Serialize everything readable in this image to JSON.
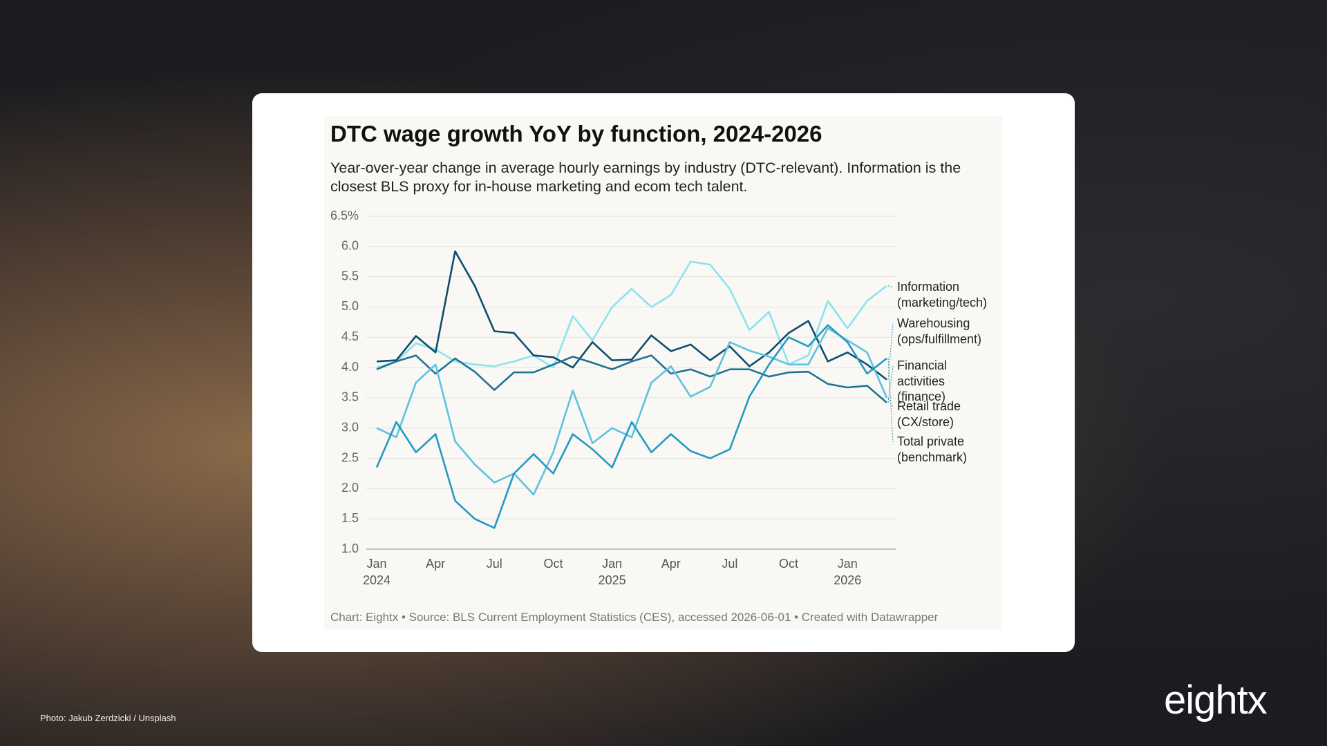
{
  "chart_data": {
    "type": "line",
    "title": "DTC wage growth YoY by function, 2024-2026",
    "subtitle": "Year-over-year change in average hourly earnings by industry (DTC-relevant). Information is the closest BLS proxy for in-house marketing and ecom tech talent.",
    "source": "Chart: Eightx • Source: BLS Current Employment Statistics (CES), accessed 2026-06-01 • Created with Datawrapper",
    "categories": [
      "Jan\n2024",
      null,
      null,
      "Apr",
      null,
      null,
      "Jul",
      null,
      null,
      "Oct",
      null,
      null,
      "Jan\n2025",
      null,
      null,
      "Apr",
      null,
      null,
      "Jul",
      null,
      null,
      "Oct",
      null,
      null,
      "Jan\n2026",
      null,
      null
    ],
    "ylim": [
      1,
      6.5
    ],
    "yticks": [
      {
        "value": 1,
        "label": "1.0"
      },
      1.5,
      {
        "value": 2,
        "label": "2.0"
      },
      2.5,
      {
        "value": 3,
        "label": "3.0"
      },
      3.5,
      {
        "value": 4,
        "label": "4.0"
      },
      4.5,
      {
        "value": 5,
        "label": "5.0"
      },
      5.5,
      {
        "value": 6,
        "label": "6.0"
      },
      {
        "value": 6.5,
        "label": "6.5%"
      }
    ],
    "grid": true,
    "series": [
      {
        "name": "Information\n(marketing/tech)",
        "color": "#8be3ef",
        "values": [
          4.0,
          4.1,
          4.4,
          4.3,
          4.1,
          4.05,
          4.02,
          4.1,
          4.2,
          4.0,
          4.85,
          4.45,
          5.0,
          5.3,
          5.0,
          5.2,
          5.75,
          5.7,
          5.3,
          4.62,
          4.92,
          4.05,
          4.2,
          5.1,
          4.65,
          5.1,
          5.35
        ]
      },
      {
        "name": "Warehousing\n(ops/fulfillment)",
        "color": "#0e4d6b",
        "values": [
          4.1,
          4.12,
          4.52,
          4.25,
          5.92,
          5.35,
          4.6,
          4.57,
          4.2,
          4.17,
          4.0,
          4.42,
          4.12,
          4.13,
          4.53,
          4.27,
          4.38,
          4.12,
          4.35,
          4.02,
          4.25,
          4.57,
          4.77,
          4.1,
          4.25,
          4.05,
          3.8
        ]
      },
      {
        "name": "Financial\nactivities\n(finance)",
        "color": "#1f7393",
        "values": [
          3.97,
          4.1,
          4.2,
          3.9,
          4.15,
          3.93,
          3.63,
          3.92,
          3.92,
          4.05,
          4.18,
          4.08,
          3.97,
          4.1,
          4.2,
          3.9,
          3.97,
          3.85,
          3.97,
          3.97,
          3.85,
          3.92,
          3.93,
          3.73,
          3.67,
          3.7,
          3.42
        ]
      },
      {
        "name": "Retail trade\n(CX/store)",
        "color": "#5cc3df",
        "values": [
          3.0,
          2.85,
          3.75,
          4.05,
          2.78,
          2.4,
          2.1,
          2.25,
          1.9,
          2.6,
          3.62,
          2.75,
          3.0,
          2.85,
          3.75,
          4.02,
          3.52,
          3.68,
          4.42,
          4.28,
          4.18,
          4.05,
          4.05,
          4.65,
          4.45,
          4.25,
          3.5
        ]
      },
      {
        "name": "Total private\n(benchmark)",
        "color": "#2299c2",
        "values": [
          2.35,
          3.1,
          2.6,
          2.9,
          1.8,
          1.5,
          1.35,
          2.25,
          2.57,
          2.25,
          2.9,
          2.65,
          2.35,
          3.1,
          2.6,
          2.9,
          2.62,
          2.5,
          2.65,
          3.52,
          4.05,
          4.5,
          4.35,
          4.7,
          4.42,
          3.9,
          4.15
        ]
      }
    ]
  },
  "photo_credit": "Photo: Jakub Zerdzicki / Unsplash",
  "logo": "eightx"
}
